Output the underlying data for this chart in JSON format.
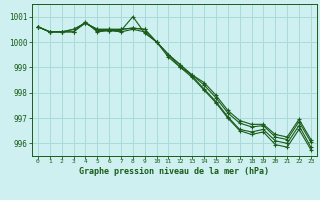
{
  "title": "Graphe pression niveau de la mer (hPa)",
  "bg_color": "#cff0f0",
  "grid_color": "#aadada",
  "line_color": "#1a5c1a",
  "text_color": "#1a5c1a",
  "xlim": [
    -0.5,
    23.5
  ],
  "ylim": [
    995.5,
    1001.5
  ],
  "yticks": [
    996,
    997,
    998,
    999,
    1000,
    1001
  ],
  "xticks": [
    0,
    1,
    2,
    3,
    4,
    5,
    6,
    7,
    8,
    9,
    10,
    11,
    12,
    13,
    14,
    15,
    16,
    17,
    18,
    19,
    20,
    21,
    22,
    23
  ],
  "series": [
    [
      1000.6,
      1000.4,
      1000.4,
      1000.5,
      1000.75,
      1000.45,
      1000.45,
      1000.45,
      1001.0,
      1000.35,
      1000.0,
      999.5,
      999.1,
      998.65,
      998.15,
      997.65,
      997.05,
      996.55,
      996.45,
      996.55,
      996.1,
      996.0,
      996.7,
      995.85
    ],
    [
      1000.6,
      1000.4,
      1000.4,
      1000.4,
      1000.75,
      1000.5,
      1000.5,
      1000.5,
      1000.55,
      1000.5,
      1000.0,
      999.5,
      999.0,
      998.7,
      998.3,
      997.8,
      997.2,
      996.8,
      996.65,
      996.7,
      996.25,
      996.15,
      996.85,
      996.05
    ],
    [
      1000.6,
      1000.4,
      1000.4,
      1000.5,
      1000.75,
      1000.5,
      1000.5,
      1000.5,
      1000.55,
      1000.5,
      1000.0,
      999.5,
      999.1,
      998.7,
      998.4,
      997.9,
      997.3,
      996.9,
      996.75,
      996.75,
      996.35,
      996.25,
      996.95,
      996.15
    ],
    [
      1000.6,
      1000.4,
      1000.4,
      1000.4,
      1000.8,
      1000.4,
      1000.45,
      1000.4,
      1000.5,
      1000.4,
      1000.0,
      999.4,
      999.0,
      998.6,
      998.1,
      997.6,
      997.0,
      996.5,
      996.35,
      996.45,
      995.95,
      995.85,
      996.55,
      995.75
    ]
  ]
}
